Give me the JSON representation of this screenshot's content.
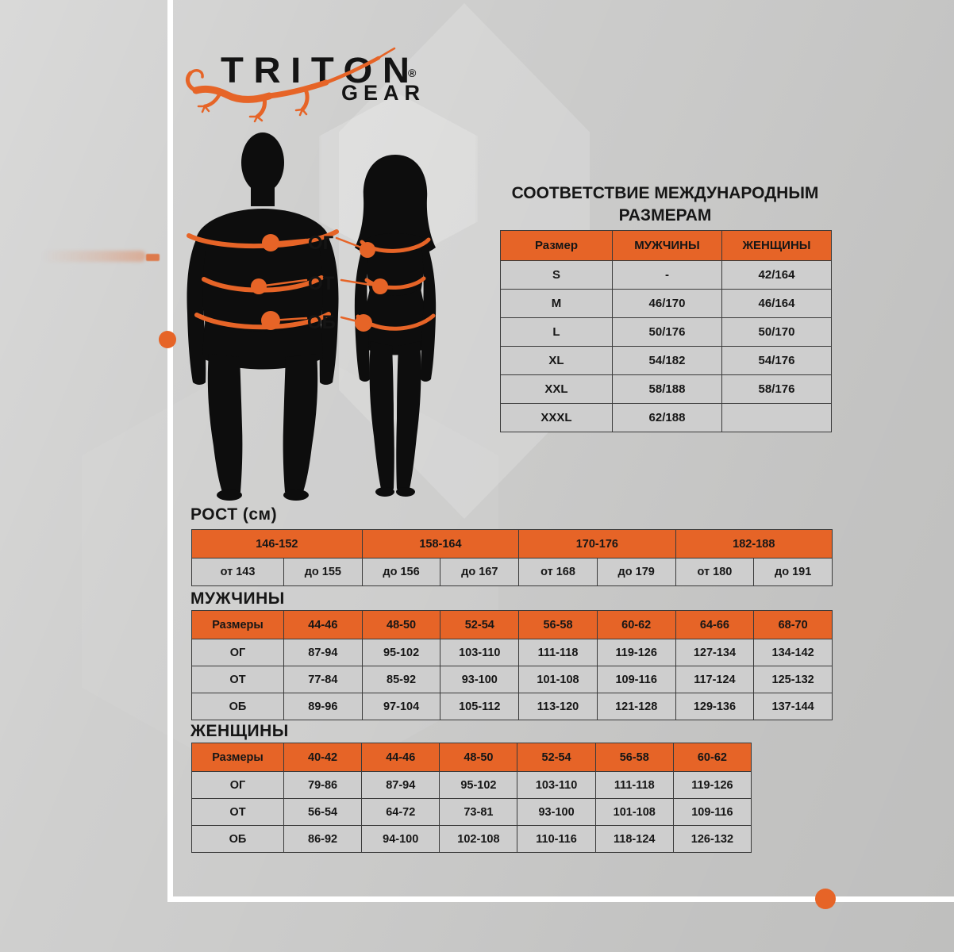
{
  "logo": {
    "brand": "TRITON",
    "reg": "®",
    "sub": "GEAR"
  },
  "figure": {
    "labels": [
      "ОГ",
      "ОТ",
      "ОБ"
    ]
  },
  "intl": {
    "title_line1": "СООТВЕТСТВИЕ МЕЖДУНАРОДНЫМ",
    "title_line2": "РАЗМЕРАМ"
  },
  "tables": {
    "intl": {
      "columns": [
        "Размер",
        "МУЖЧИНЫ",
        "ЖЕНЩИНЫ"
      ],
      "rows": [
        [
          "S",
          "-",
          "42/164"
        ],
        [
          "M",
          "46/170",
          "46/164"
        ],
        [
          "L",
          "50/176",
          "50/170"
        ],
        [
          "XL",
          "54/182",
          "54/176"
        ],
        [
          "XXL",
          "58/188",
          "58/176"
        ],
        [
          "XXXL",
          "62/188",
          ""
        ]
      ]
    },
    "rost": {
      "title": "РОСТ (см)",
      "groups": [
        "146-152",
        "158-164",
        "170-176",
        "182-188"
      ],
      "sub": [
        "от 143",
        "до 155",
        "до 156",
        "до 167",
        "от 168",
        "до 179",
        "от 180",
        "до 191"
      ]
    },
    "men": {
      "title": "МУЖЧИНЫ",
      "header": [
        "Размеры",
        "44-46",
        "48-50",
        "52-54",
        "56-58",
        "60-62",
        "64-66",
        "68-70"
      ],
      "rows": [
        [
          "ОГ",
          "87-94",
          "95-102",
          "103-110",
          "111-118",
          "119-126",
          "127-134",
          "134-142"
        ],
        [
          "ОТ",
          "77-84",
          "85-92",
          "93-100",
          "101-108",
          "109-116",
          "117-124",
          "125-132"
        ],
        [
          "ОБ",
          "89-96",
          "97-104",
          "105-112",
          "113-120",
          "121-128",
          "129-136",
          "137-144"
        ]
      ]
    },
    "women": {
      "title": "ЖЕНЩИНЫ",
      "header": [
        "Размеры",
        "40-42",
        "44-46",
        "48-50",
        "52-54",
        "56-58",
        "60-62"
      ],
      "rows": [
        [
          "ОГ",
          "79-86",
          "87-94",
          "95-102",
          "103-110",
          "111-118",
          "119-126"
        ],
        [
          "ОТ",
          "56-54",
          "64-72",
          "73-81",
          "93-100",
          "101-108",
          "109-116"
        ],
        [
          "ОБ",
          "86-92",
          "94-100",
          "102-108",
          "110-116",
          "118-124",
          "126-132"
        ]
      ]
    }
  },
  "colors": {
    "accent": "#E66427",
    "background": "#C9C9C8",
    "cell_background": "#CECECE",
    "table_border": "#3A3A3A",
    "silhouette": "#0D0D0D",
    "frame": "#FFFFFF",
    "text": "#161616"
  }
}
